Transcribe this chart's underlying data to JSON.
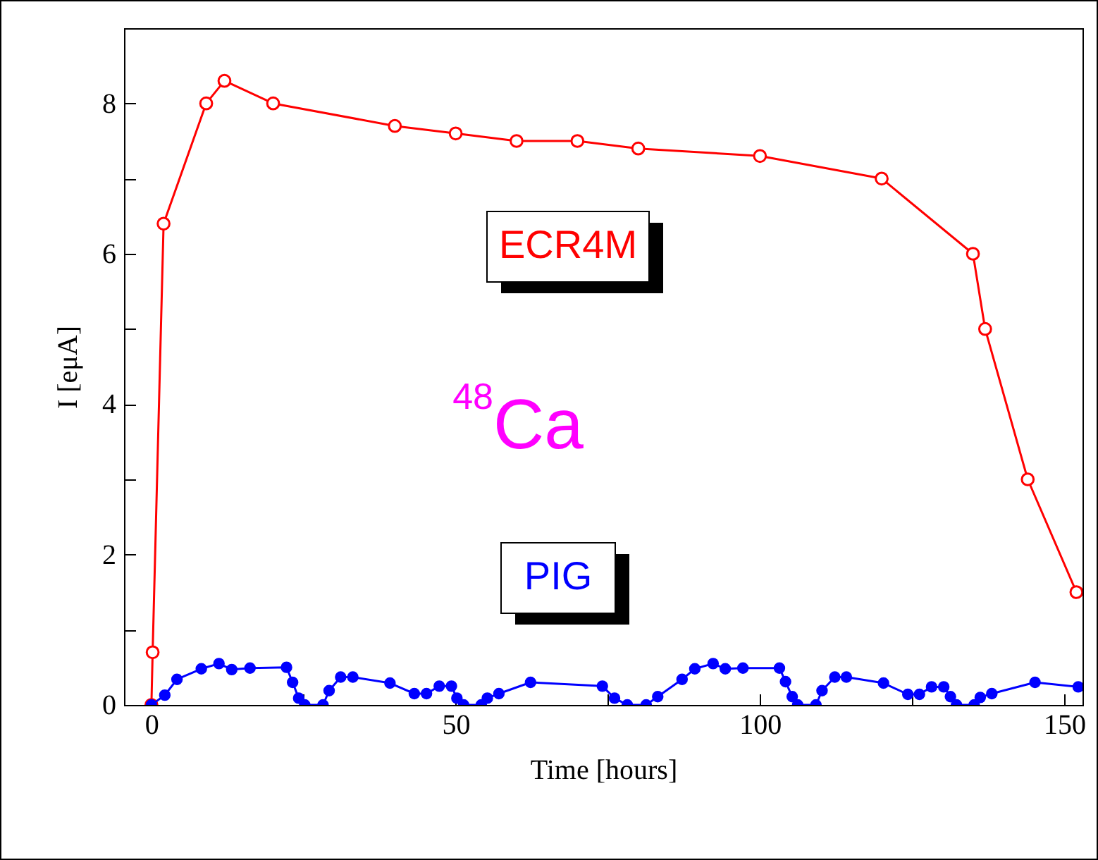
{
  "chart_data": {
    "type": "line",
    "xlabel": "Time [hours]",
    "ylabel": "I [eμA]",
    "annotations": [
      "$^{48}$Ca"
    ],
    "xlim": [
      -4.5,
      153
    ],
    "ylim": [
      0,
      9
    ],
    "xticks": [
      0,
      {
        "value": 25,
        "label": null
      },
      50,
      {
        "value": 75,
        "label": null
      },
      100,
      {
        "value": 125,
        "label": null
      },
      150
    ],
    "yticks": [
      0,
      {
        "value": 1,
        "label": null
      },
      2,
      {
        "value": 3,
        "label": null
      },
      4,
      {
        "value": 5,
        "label": null
      },
      6,
      {
        "value": 7,
        "label": null
      },
      8
    ],
    "grid": false,
    "marker": "circle",
    "line_style": "solid",
    "series": [
      {
        "name": "ECR4M",
        "color": "#ff0000",
        "x": [
          0,
          0.2,
          2,
          9,
          12,
          20,
          40,
          50,
          60,
          70,
          80,
          100,
          120,
          135,
          137,
          144,
          152
        ],
        "values": [
          0,
          0.7,
          6.4,
          8,
          8.3,
          8,
          7.7,
          7.6,
          7.5,
          7.5,
          7.4,
          7.3,
          7,
          6,
          5,
          3,
          1.5
        ]
      },
      {
        "name": "PIG",
        "color": "#0000ff",
        "x": [
          0,
          2.2,
          4.2,
          8.2,
          11.1,
          13.2,
          16.2,
          22.2,
          23.2,
          24.2,
          25.2,
          28.2,
          29.2,
          31.1,
          33.1,
          39.2,
          43.2,
          45.2,
          47.3,
          49.3,
          50.2,
          51.3,
          54.2,
          55.2,
          57.1,
          62.3,
          74.1,
          76.1,
          78.2,
          81.3,
          83.2,
          87.2,
          89.3,
          92.3,
          94.3,
          97.2,
          103.2,
          104.2,
          105.3,
          106.2,
          109.2,
          110.2,
          112.3,
          114.2,
          120.3,
          124.3,
          126.2,
          128.2,
          130.2,
          131.3,
          132.3,
          135.2,
          136.2,
          138.1,
          145.2,
          152.3
        ],
        "values": [
          0,
          0.13,
          0.34,
          0.48,
          0.55,
          0.47,
          0.49,
          0.5,
          0.3,
          0.09,
          0,
          0,
          0.19,
          0.37,
          0.37,
          0.29,
          0.15,
          0.15,
          0.25,
          0.25,
          0.09,
          0,
          0,
          0.09,
          0.15,
          0.3,
          0.25,
          0.09,
          0,
          0,
          0.11,
          0.34,
          0.48,
          0.55,
          0.48,
          0.49,
          0.49,
          0.31,
          0.11,
          0,
          0,
          0.19,
          0.37,
          0.37,
          0.29,
          0.14,
          0.14,
          0.24,
          0.24,
          0.11,
          0,
          0,
          0.1,
          0.15,
          0.3,
          0.24
        ]
      }
    ]
  }
}
